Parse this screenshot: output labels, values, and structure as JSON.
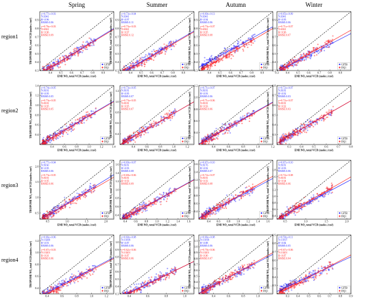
{
  "figure": {
    "seasons": [
      "Spring",
      "Summer",
      "Autumn",
      "Winter"
    ],
    "regions": [
      "region1",
      "region2",
      "region3",
      "region4"
    ],
    "xlabel": "EMI NO₂ total VCD (molec./cm²)",
    "ylabel": "TROPOMI NO₂ total VCD (molec./cm²)",
    "legend": [
      "GF5B",
      "DQ1"
    ],
    "colors": {
      "GF5B": "#2b2bff",
      "DQ1": "#ff2020",
      "one_to_one": "#000000"
    }
  },
  "chart_data": [
    {
      "type": "scatter",
      "region": "region1",
      "season": "Spring",
      "xlim": [
        0.3,
        1.0
      ],
      "ylim": [
        0.3,
        1.0
      ],
      "xticks": [
        0.4,
        0.5,
        0.6,
        0.7,
        0.8,
        0.9
      ],
      "yticks": [
        0.3,
        0.4,
        0.5,
        0.6,
        0.7,
        0.8,
        0.9
      ],
      "series": [
        {
          "name": "GF5B",
          "slope": 0.77,
          "intercept": 0.03,
          "stats": [
            "y=0.77x+0.03",
            "N:6941",
            "R²:0.96",
            "RMSE:0.06"
          ]
        },
        {
          "name": "DQ1",
          "slope": 0.76,
          "intercept": 0.03,
          "stats": [
            "y=0.76x+0.03",
            "N:6941",
            "R²:0.96",
            "RMSE:0.09"
          ]
        }
      ]
    },
    {
      "type": "scatter",
      "region": "region1",
      "season": "Summer",
      "xlim": [
        0.3,
        1.0
      ],
      "ylim": [
        0.3,
        1.0
      ],
      "xticks": [
        0.3,
        0.4,
        0.5,
        0.6,
        0.7,
        0.8,
        0.9
      ],
      "yticks": [
        0.3,
        0.4,
        0.5,
        0.6,
        0.7,
        0.8,
        0.9
      ],
      "series": [
        {
          "name": "GF5B",
          "slope": 0.73,
          "intercept": 0.04,
          "stats": [
            "y=0.73x+0.04",
            "N:6941",
            "R²:0.97",
            "RMSE:0.11"
          ]
        },
        {
          "name": "DQ1",
          "slope": 0.73,
          "intercept": 0.03,
          "stats": [
            "y=0.73x+0.03",
            "N:6941",
            "R²:0.97",
            "RMSE:0.12"
          ]
        }
      ]
    },
    {
      "type": "scatter",
      "region": "region1",
      "season": "Autumn",
      "xlim": [
        0.3,
        1.0
      ],
      "ylim": [
        0.3,
        1.0
      ],
      "xticks": [
        0.4,
        0.5,
        0.6,
        0.7,
        0.8,
        0.9
      ],
      "yticks": [
        0.3,
        0.4,
        0.5,
        0.6,
        0.7,
        0.8,
        0.9
      ],
      "series": [
        {
          "name": "GF5B",
          "slope": 0.69,
          "intercept": 0.13,
          "stats": [
            "y=0.69x+0.13",
            "N:6941",
            "R²:0.94",
            "RMSE:0.06"
          ]
        },
        {
          "name": "DQ1",
          "slope": 0.73,
          "intercept": 0.07,
          "stats": [
            "y=0.73x+0.07",
            "N:6941",
            "R²:0.95",
            "RMSE:0.08"
          ]
        }
      ]
    },
    {
      "type": "scatter",
      "region": "region1",
      "season": "Winter",
      "xlim": [
        0.3,
        1.0
      ],
      "ylim": [
        0.3,
        1.0
      ],
      "xticks": [
        0.3,
        0.4,
        0.5,
        0.6,
        0.7,
        0.8,
        0.9
      ],
      "yticks": [
        0.3,
        0.4,
        0.5,
        0.6,
        0.7,
        0.8,
        0.9
      ],
      "series": [
        {
          "name": "GF5B",
          "slope": 0.65,
          "intercept": 0.09,
          "stats": [
            "y=0.65x+0.09",
            "N:6941",
            "R²:0.95",
            "RMSE:0.06"
          ]
        },
        {
          "name": "DQ1",
          "slope": 0.71,
          "intercept": 0.07,
          "stats": [
            "y=0.71x+0.07",
            "N:6941",
            "R²:0.96",
            "RMSE:0.07"
          ]
        }
      ]
    },
    {
      "type": "scatter",
      "region": "region2",
      "season": "Spring",
      "xlim": [
        0.2,
        1.4
      ],
      "ylim": [
        0.2,
        1.4
      ],
      "xticks": [
        0.4,
        0.6,
        0.8,
        1.0,
        1.2,
        1.4
      ],
      "yticks": [
        0.4,
        0.6,
        0.8,
        1.0,
        1.2,
        1.4
      ],
      "series": [
        {
          "name": "GF5B",
          "slope": 0.74,
          "intercept": 0.05,
          "stats": [
            "y=0.74x+0.05",
            "N:8181",
            "R²:0.95",
            "RMSE:0.05"
          ]
        },
        {
          "name": "DQ1",
          "slope": 0.73,
          "intercept": 0.05,
          "stats": [
            "y=0.73x+0.05",
            "N:8181",
            "R²:0.95",
            "RMSE:0.05"
          ]
        }
      ]
    },
    {
      "type": "scatter",
      "region": "region2",
      "season": "Summer",
      "xlim": [
        0.2,
        1.3
      ],
      "ylim": [
        0.2,
        1.3
      ],
      "xticks": [
        0.4,
        0.6,
        0.8,
        1.0,
        1.2
      ],
      "yticks": [
        0.4,
        0.6,
        0.8,
        1.0,
        1.2
      ],
      "series": [
        {
          "name": "GF5B",
          "slope": 0.73,
          "intercept": 0.05,
          "stats": [
            "y=0.73x+0.05",
            "N:8181",
            "R²:0.95",
            "RMSE:0.07"
          ]
        },
        {
          "name": "DQ1",
          "slope": 0.73,
          "intercept": 0.05,
          "stats": [
            "y=0.73x+0.05",
            "N:8181",
            "R²:0.95",
            "RMSE:0.07"
          ]
        }
      ]
    },
    {
      "type": "scatter",
      "region": "region2",
      "season": "Autumn",
      "xlim": [
        0.2,
        1.2
      ],
      "ylim": [
        0.2,
        1.2
      ],
      "xticks": [
        0.4,
        0.6,
        0.8,
        1.0,
        1.2
      ],
      "yticks": [
        0.4,
        0.6,
        0.8,
        1.0,
        1.2
      ],
      "series": [
        {
          "name": "GF5B",
          "slope": 0.71,
          "intercept": 0.07,
          "stats": [
            "y=0.71x+0.07",
            "N:8181",
            "R²:0.93",
            "RMSE:0.06"
          ]
        },
        {
          "name": "DQ1",
          "slope": 0.71,
          "intercept": 0.06,
          "stats": [
            "y=0.71x+0.06",
            "N:8181",
            "R²:0.93",
            "RMSE:0.06"
          ]
        }
      ]
    },
    {
      "type": "scatter",
      "region": "region2",
      "season": "Winter",
      "xlim": [
        0.2,
        0.8
      ],
      "ylim": [
        0.2,
        0.8
      ],
      "xticks": [
        0.3,
        0.4,
        0.5,
        0.6,
        0.7,
        0.8
      ],
      "yticks": [
        0.3,
        0.4,
        0.5,
        0.6,
        0.7,
        0.8
      ],
      "series": [
        {
          "name": "GF5B",
          "slope": 0.72,
          "intercept": 0.07,
          "stats": [
            "y=0.72x+0.07",
            "N:8181",
            "R²:0.92",
            "RMSE:0.03"
          ]
        },
        {
          "name": "DQ1",
          "slope": 0.72,
          "intercept": 0.07,
          "stats": [
            "y=0.72x+0.07",
            "N:8181",
            "R²:0.92",
            "RMSE:0.03"
          ]
        }
      ]
    },
    {
      "type": "scatter",
      "region": "region3",
      "season": "Spring",
      "xlim": [
        0.3,
        2.2
      ],
      "ylim": [
        0.3,
        2.2
      ],
      "xticks": [
        0.5,
        1.0,
        1.5,
        2.0
      ],
      "yticks": [
        0.5,
        1.0,
        1.5,
        2.0
      ],
      "series": [
        {
          "name": "GF5B",
          "slope": 0.77,
          "intercept": 0.04,
          "stats": [
            "y=0.77x+0.04",
            "N:8160",
            "R²:0.95",
            "RMSE:0.06"
          ]
        },
        {
          "name": "DQ1",
          "slope": 0.73,
          "intercept": 0.05,
          "stats": [
            "y=0.73x+0.05",
            "N:8181",
            "R²:0.95",
            "RMSE:0.06"
          ]
        }
      ]
    },
    {
      "type": "scatter",
      "region": "region3",
      "season": "Summer",
      "xlim": [
        0.3,
        1.7
      ],
      "ylim": [
        0.3,
        1.7
      ],
      "xticks": [
        0.4,
        0.6,
        0.8,
        1.0,
        1.2,
        1.4,
        1.6
      ],
      "yticks": [
        0.4,
        0.6,
        0.8,
        1.0,
        1.2,
        1.4,
        1.6
      ],
      "series": [
        {
          "name": "GF5B",
          "slope": 0.69,
          "intercept": 0.07,
          "stats": [
            "y=0.69x+0.07",
            "N:8181",
            "R²:0.93",
            "RMSE:0.08"
          ]
        },
        {
          "name": "DQ1",
          "slope": 0.69,
          "intercept": 0.06,
          "stats": [
            "y=0.69x+0.06",
            "N:8181",
            "R²:0.93",
            "RMSE:0.09"
          ]
        }
      ]
    },
    {
      "type": "scatter",
      "region": "region3",
      "season": "Autumn",
      "xlim": [
        0.2,
        1.7
      ],
      "ylim": [
        0.2,
        1.7
      ],
      "xticks": [
        0.4,
        0.6,
        0.8,
        1.0,
        1.2,
        1.4,
        1.6
      ],
      "yticks": [
        0.4,
        0.6,
        0.8,
        1.0,
        1.2,
        1.4,
        1.6
      ],
      "series": [
        {
          "name": "GF5B",
          "slope": 0.67,
          "intercept": 0.1,
          "stats": [
            "y=0.67x+0.10",
            "N:8176",
            "R²:0.92",
            "RMSE:0.07"
          ]
        },
        {
          "name": "DQ1",
          "slope": 0.72,
          "intercept": 0.07,
          "stats": [
            "y=0.72x+0.07",
            "N:8181",
            "R²:0.93",
            "RMSE:0.08"
          ]
        }
      ]
    },
    {
      "type": "scatter",
      "region": "region3",
      "season": "Winter",
      "xlim": [
        0.3,
        2.1
      ],
      "ylim": [
        0.3,
        2.1
      ],
      "xticks": [
        0.5,
        1.0,
        1.5,
        2.0
      ],
      "yticks": [
        0.4,
        0.6,
        0.8,
        1.0,
        1.2,
        1.4,
        1.6,
        1.8
      ],
      "series": [
        {
          "name": "GF5B",
          "slope": 0.67,
          "intercept": 0.1,
          "stats": [
            "y=0.67x+0.10",
            "N:8181",
            "R²:0.93",
            "RMSE:0.06"
          ]
        },
        {
          "name": "DQ1",
          "slope": 0.72,
          "intercept": 0.08,
          "stats": [
            "y=0.72x+0.08",
            "N:8181",
            "R²:0.94",
            "RMSE:0.06"
          ]
        }
      ]
    },
    {
      "type": "scatter",
      "region": "region4",
      "season": "Spring",
      "xlim": [
        0.3,
        1.3
      ],
      "ylim": [
        0.3,
        1.3
      ],
      "xticks": [
        0.4,
        0.6,
        0.8,
        1.0,
        1.2
      ],
      "yticks": [
        0.4,
        0.6,
        0.8,
        1.0,
        1.2
      ],
      "series": [
        {
          "name": "GF5B",
          "slope": 0.66,
          "intercept": 0.06,
          "stats": [
            "y=0.66x+0.06",
            "N:10200",
            "R²:0.91",
            "RMSE:0.06"
          ]
        },
        {
          "name": "DQ1",
          "slope": 0.67,
          "intercept": 0.03,
          "stats": [
            "y=0.67x+0.03",
            "N:10201",
            "R²:0.91",
            "RMSE:0.06"
          ]
        }
      ]
    },
    {
      "type": "scatter",
      "region": "region4",
      "season": "Summer",
      "xlim": [
        0.3,
        1.1
      ],
      "ylim": [
        0.3,
        1.1
      ],
      "xticks": [
        0.4,
        0.6,
        0.8,
        1.0
      ],
      "yticks": [
        0.3,
        0.4,
        0.5,
        0.6,
        0.7,
        0.8,
        0.9,
        1.0
      ],
      "series": [
        {
          "name": "GF5B",
          "slope": 0.6,
          "intercept": 0.08,
          "stats": [
            "y=0.60x+0.08",
            "N:10199",
            "R²:0.87",
            "RMSE:0.06"
          ]
        },
        {
          "name": "DQ1",
          "slope": 0.62,
          "intercept": 0.06,
          "stats": [
            "y=0.62x+0.06",
            "N:10201",
            "R²:0.87",
            "RMSE:0.06"
          ]
        }
      ]
    },
    {
      "type": "scatter",
      "region": "region4",
      "season": "Autumn",
      "xlim": [
        0.2,
        1.2
      ],
      "ylim": [
        0.2,
        1.2
      ],
      "xticks": [
        0.4,
        0.6,
        0.8,
        1.0
      ],
      "yticks": [
        0.3,
        0.4,
        0.5,
        0.6,
        0.7,
        0.8,
        0.9,
        1.0,
        1.1
      ],
      "series": [
        {
          "name": "GF5B",
          "slope": 0.66,
          "intercept": 0.08,
          "stats": [
            "y=0.66x+0.08",
            "N:10199",
            "R²:0.88",
            "RMSE:0.06"
          ]
        },
        {
          "name": "DQ1",
          "slope": 0.7,
          "intercept": 0.06,
          "stats": [
            "y=0.70x+0.06",
            "N:10201",
            "R²:0.90",
            "RMSE:0.07"
          ]
        }
      ]
    },
    {
      "type": "scatter",
      "region": "region4",
      "season": "Winter",
      "xlim": [
        0.2,
        0.9
      ],
      "ylim": [
        0.2,
        0.9
      ],
      "xticks": [
        0.3,
        0.4,
        0.5,
        0.6,
        0.7,
        0.8,
        0.9
      ],
      "yticks": [
        0.3,
        0.4,
        0.5,
        0.6,
        0.7,
        0.8,
        0.9
      ],
      "series": [
        {
          "name": "GF5B",
          "slope": 0.59,
          "intercept": 0.11,
          "stats": [
            "y=0.59x+0.11",
            "N:10197",
            "R²:0.84",
            "RMSE:0.05"
          ]
        },
        {
          "name": "DQ1",
          "slope": 0.67,
          "intercept": 0.06,
          "stats": [
            "y=0.67x+0.06",
            "N:10201",
            "R²:0.87",
            "RMSE:0.04"
          ]
        }
      ]
    }
  ]
}
